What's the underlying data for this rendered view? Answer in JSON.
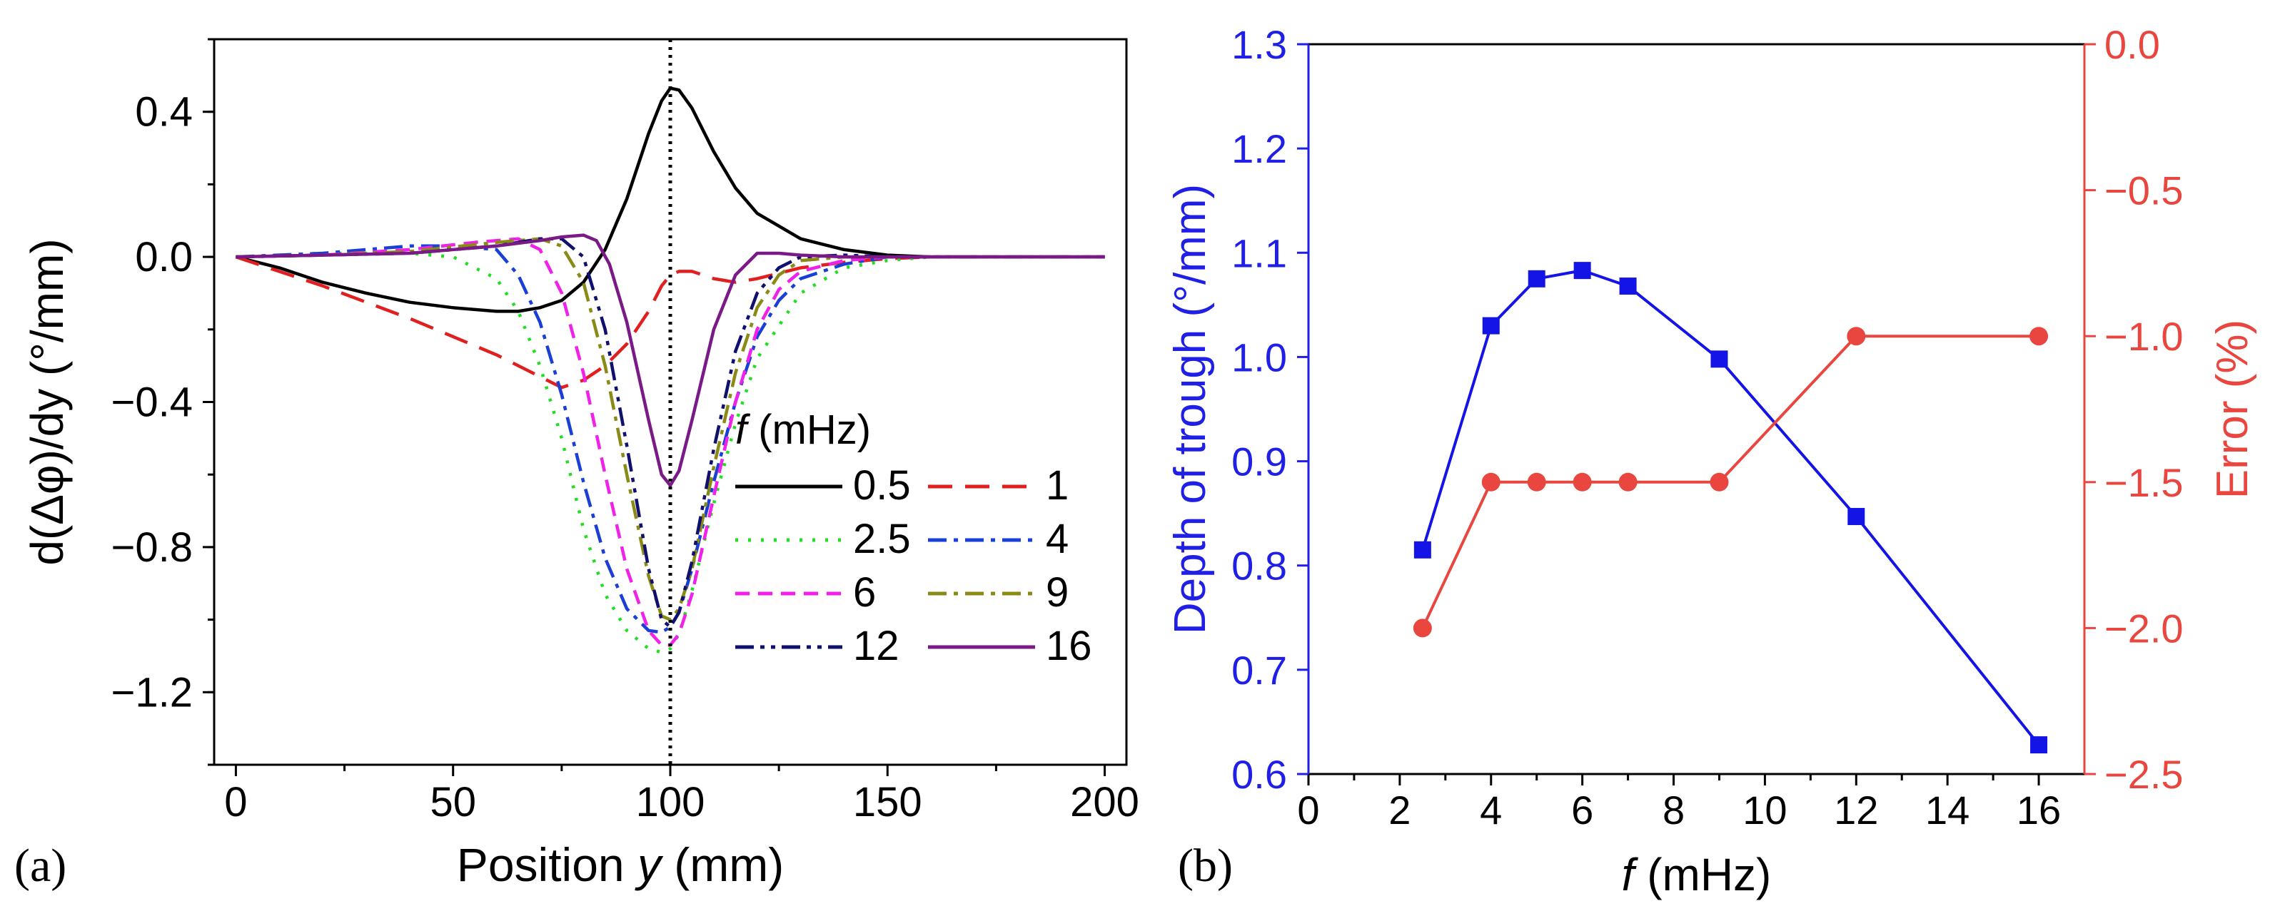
{
  "panel_labels": {
    "a": "(a)",
    "b": "(b)"
  },
  "colors": {
    "left_axis_b": "#1f1fe6",
    "right_axis_b": "#e8463f",
    "depth_series": "#1414e6",
    "error_series": "#e8463f"
  },
  "chart_data": [
    {
      "type": "line",
      "title": "",
      "xlabel_prefix": "Position ",
      "xlabel_var": "y",
      "xlabel_suffix": " (mm)",
      "ylabel": "d(Δφ)/dy (°/mm)",
      "xlim": [
        -5,
        205
      ],
      "ylim": [
        -1.4,
        0.6
      ],
      "xticks": [
        0,
        50,
        100,
        150,
        200
      ],
      "xtick_labels": [
        "0",
        "50",
        "100",
        "150",
        "200"
      ],
      "yticks": [
        0.4,
        0.0,
        -0.4,
        -0.8,
        -1.2
      ],
      "ytick_labels": [
        "0.4",
        "0.0",
        "−0.4",
        "−0.8",
        "−1.2"
      ],
      "vline_x": 100,
      "legend_title_var": "f",
      "legend_title_unit": " (mHz)",
      "legend_position": "lower-right",
      "series": [
        {
          "name": "0.5",
          "color": "#000000",
          "dash": "solid",
          "x": [
            0,
            10,
            20,
            30,
            40,
            50,
            60,
            65,
            70,
            75,
            80,
            85,
            90,
            95,
            98,
            100,
            102,
            105,
            110,
            115,
            120,
            130,
            140,
            150,
            160,
            180,
            200
          ],
          "y": [
            0,
            -0.03,
            -0.07,
            -0.1,
            -0.125,
            -0.14,
            -0.15,
            -0.15,
            -0.14,
            -0.12,
            -0.07,
            0.02,
            0.16,
            0.34,
            0.43,
            0.465,
            0.46,
            0.41,
            0.29,
            0.19,
            0.12,
            0.05,
            0.02,
            0.005,
            0,
            0,
            0
          ]
        },
        {
          "name": "1",
          "color": "#e11f1f",
          "dash": "long",
          "x": [
            0,
            20,
            40,
            60,
            70,
            75,
            80,
            85,
            90,
            95,
            98,
            100,
            102,
            105,
            110,
            115,
            120,
            130,
            140,
            150,
            160,
            180,
            200
          ],
          "y": [
            0,
            -0.08,
            -0.17,
            -0.27,
            -0.33,
            -0.36,
            -0.34,
            -0.3,
            -0.24,
            -0.15,
            -0.08,
            -0.05,
            -0.04,
            -0.04,
            -0.06,
            -0.07,
            -0.06,
            -0.03,
            -0.015,
            -0.005,
            0,
            0,
            0
          ]
        },
        {
          "name": "2.5",
          "color": "#22dd22",
          "dash": "dot",
          "x": [
            0,
            20,
            40,
            50,
            60,
            65,
            70,
            75,
            80,
            85,
            90,
            95,
            98,
            100,
            102,
            105,
            110,
            115,
            120,
            130,
            140,
            150,
            160,
            180,
            200
          ],
          "y": [
            0,
            0.01,
            0.01,
            0,
            -0.06,
            -0.15,
            -0.3,
            -0.5,
            -0.75,
            -0.93,
            -1.03,
            -1.08,
            -1.09,
            -1.08,
            -1.04,
            -0.92,
            -0.68,
            -0.46,
            -0.28,
            -0.1,
            -0.03,
            -0.01,
            0,
            0,
            0
          ]
        },
        {
          "name": "4",
          "color": "#1a3fd6",
          "dash": "dashdot",
          "x": [
            0,
            20,
            40,
            50,
            60,
            65,
            70,
            75,
            80,
            85,
            90,
            95,
            98,
            100,
            102,
            105,
            110,
            115,
            120,
            125,
            130,
            140,
            150,
            170,
            200
          ],
          "y": [
            0,
            0.01,
            0.03,
            0.03,
            0.02,
            -0.05,
            -0.18,
            -0.38,
            -0.62,
            -0.83,
            -0.97,
            -1.03,
            -1.035,
            -1.02,
            -0.98,
            -0.86,
            -0.62,
            -0.4,
            -0.22,
            -0.12,
            -0.06,
            -0.02,
            0,
            0,
            0
          ]
        },
        {
          "name": "6",
          "color": "#f021e8",
          "dash": "dash",
          "x": [
            0,
            20,
            40,
            55,
            65,
            70,
            75,
            80,
            85,
            90,
            95,
            98,
            100,
            102,
            105,
            110,
            115,
            120,
            125,
            130,
            140,
            150,
            170,
            200
          ],
          "y": [
            0,
            0.005,
            0.02,
            0.04,
            0.05,
            0.02,
            -0.1,
            -0.32,
            -0.6,
            -0.86,
            -1.03,
            -1.07,
            -1.07,
            -1.04,
            -0.93,
            -0.66,
            -0.4,
            -0.2,
            -0.09,
            -0.04,
            -0.01,
            0,
            0,
            0
          ]
        },
        {
          "name": "9",
          "color": "#8a8a16",
          "dash": "dashdot",
          "x": [
            0,
            20,
            40,
            60,
            70,
            75,
            80,
            85,
            90,
            95,
            98,
            100,
            102,
            105,
            110,
            115,
            120,
            125,
            130,
            140,
            150,
            170,
            200
          ],
          "y": [
            0,
            0.005,
            0.015,
            0.04,
            0.05,
            0.03,
            -0.07,
            -0.3,
            -0.6,
            -0.88,
            -0.99,
            -1.0,
            -0.97,
            -0.86,
            -0.58,
            -0.32,
            -0.14,
            -0.05,
            -0.01,
            0,
            0,
            0,
            0
          ]
        },
        {
          "name": "12",
          "color": "#10106e",
          "dash": "dashdotdot",
          "x": [
            0,
            20,
            40,
            60,
            70,
            75,
            80,
            85,
            90,
            95,
            98,
            100,
            102,
            105,
            110,
            115,
            120,
            125,
            130,
            140,
            150,
            170,
            200
          ],
          "y": [
            0,
            0.005,
            0.01,
            0.03,
            0.05,
            0.05,
            0.0,
            -0.2,
            -0.52,
            -0.86,
            -1.0,
            -1.02,
            -0.98,
            -0.84,
            -0.53,
            -0.26,
            -0.1,
            -0.03,
            0.0,
            0.005,
            0,
            0,
            0
          ]
        },
        {
          "name": "16",
          "color": "#7a1a86",
          "dash": "solid",
          "x": [
            0,
            20,
            40,
            60,
            70,
            75,
            80,
            83,
            86,
            90,
            95,
            98,
            100,
            102,
            105,
            110,
            115,
            120,
            125,
            130,
            140,
            150,
            170,
            200
          ],
          "y": [
            0,
            0.005,
            0.01,
            0.03,
            0.045,
            0.055,
            0.06,
            0.045,
            -0.02,
            -0.18,
            -0.45,
            -0.6,
            -0.63,
            -0.59,
            -0.45,
            -0.2,
            -0.05,
            0.01,
            0.01,
            0.005,
            0,
            0,
            0,
            0
          ]
        }
      ]
    },
    {
      "type": "line",
      "title": "",
      "xlabel_var": "f",
      "xlabel_suffix": " (mHz)",
      "ylabel": "Depth of trough (°/mm)",
      "ylabel_right": "Error (%)",
      "xlim": [
        0,
        17
      ],
      "ylim": [
        0.6,
        1.3
      ],
      "ylim_right": [
        -2.5,
        0.0
      ],
      "xticks": [
        0,
        2,
        4,
        6,
        8,
        10,
        12,
        14,
        16
      ],
      "xtick_labels": [
        "0",
        "2",
        "4",
        "6",
        "8",
        "10",
        "12",
        "14",
        "16"
      ],
      "yticks": [
        0.6,
        0.7,
        0.8,
        0.9,
        1.0,
        1.1,
        1.2,
        1.3
      ],
      "ytick_labels": [
        "0.6",
        "0.7",
        "0.8",
        "0.9",
        "1.0",
        "1.1",
        "1.2",
        "1.3"
      ],
      "yticks_right": [
        0.0,
        -0.5,
        -1.0,
        -1.5,
        -2.0,
        -2.5
      ],
      "ytick_labels_right": [
        "0.0",
        "−0.5",
        "−1.0",
        "−1.5",
        "−2.0",
        "−2.5"
      ],
      "series": [
        {
          "name": "Depth of trough",
          "axis": "left",
          "marker": "square",
          "x": [
            2.5,
            4,
            5,
            6,
            7,
            9,
            12,
            16
          ],
          "y": [
            0.815,
            1.03,
            1.075,
            1.083,
            1.068,
            0.998,
            0.847,
            0.628
          ]
        },
        {
          "name": "Error",
          "axis": "right",
          "marker": "circle",
          "x": [
            2.5,
            4,
            5,
            6,
            7,
            9,
            12,
            16
          ],
          "y": [
            -2.0,
            -1.5,
            -1.5,
            -1.5,
            -1.5,
            -1.5,
            -1.0,
            -1.0
          ]
        }
      ]
    }
  ]
}
